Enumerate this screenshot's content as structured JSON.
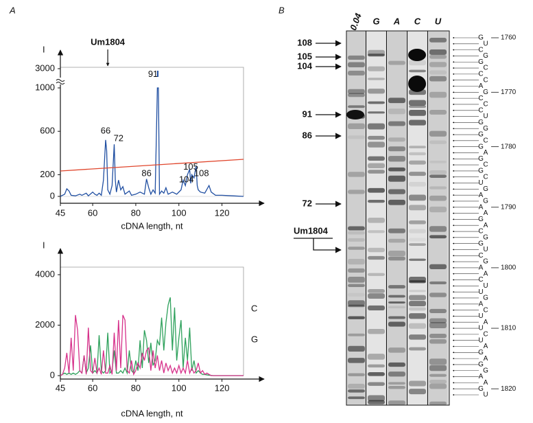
{
  "panels": {
    "a": "A",
    "b": "B"
  },
  "chart_data": [
    {
      "type": "line",
      "y_label": "I",
      "x_label": "cDNA length, nt",
      "x": [
        45,
        47,
        48,
        49,
        50,
        52,
        54,
        55,
        57,
        58,
        60,
        61,
        62,
        63,
        64,
        65,
        66,
        66.5,
        67,
        68,
        69,
        70,
        70.5,
        71,
        72,
        73,
        74,
        75,
        77,
        78,
        80,
        82,
        84,
        85,
        86,
        87,
        88,
        89,
        90,
        90.5,
        91,
        92,
        93,
        94,
        95,
        97,
        99,
        101,
        102,
        103,
        104,
        105,
        105.5,
        106,
        107,
        108,
        108.5,
        109,
        110,
        112,
        114,
        115,
        117,
        120,
        125,
        130
      ],
      "xlim": [
        45,
        130
      ],
      "xticks": [
        45,
        60,
        80,
        100,
        120
      ],
      "ylim": [
        0,
        3000
      ],
      "yticks": [
        0,
        200,
        600,
        1000,
        3000
      ],
      "axis_break": [
        1000,
        3000
      ],
      "series": [
        {
          "color": "#1f4ea1",
          "values": [
            0,
            20,
            70,
            50,
            10,
            5,
            20,
            10,
            30,
            5,
            40,
            20,
            10,
            30,
            10,
            150,
            520,
            420,
            60,
            20,
            100,
            480,
            150,
            40,
            150,
            60,
            90,
            20,
            50,
            10,
            20,
            40,
            20,
            160,
            80,
            20,
            60,
            30,
            1000,
            1000,
            20,
            50,
            30,
            80,
            20,
            40,
            20,
            60,
            150,
            100,
            200,
            250,
            120,
            200,
            170,
            280,
            100,
            60,
            40,
            30,
            100,
            40,
            10,
            10,
            5,
            0
          ]
        },
        {
          "color": "#e0452b",
          "x": [
            45,
            130
          ],
          "values": [
            234,
            342
          ]
        }
      ],
      "annotations": [
        {
          "text": "Um1804",
          "x": 67
        },
        {
          "text": "66",
          "x": 66,
          "y": 600
        },
        {
          "text": "72",
          "x": 72,
          "y": 530
        },
        {
          "text": "86",
          "x": 85,
          "y": 210
        },
        {
          "text": "91",
          "x": 88,
          "y": 2400
        },
        {
          "text": "104",
          "x": 103.5,
          "y": 150
        },
        {
          "text": "105",
          "x": 105.5,
          "y": 270
        },
        {
          "text": "108",
          "x": 110.5,
          "y": 210
        }
      ]
    },
    {
      "type": "line",
      "y_label": "I",
      "x_label": "cDNA length, nt",
      "x": [
        45,
        46,
        47,
        48,
        49,
        50,
        51,
        52,
        53,
        54,
        55,
        56,
        57,
        58,
        59,
        60,
        61,
        62,
        63,
        64,
        65,
        66,
        67,
        68,
        69,
        70,
        71,
        72,
        73,
        74,
        75,
        76,
        77,
        78,
        79,
        80,
        81,
        82,
        83,
        84,
        85,
        86,
        87,
        88,
        89,
        90,
        91,
        92,
        93,
        94,
        95,
        96,
        97,
        98,
        99,
        100,
        101,
        102,
        103,
        104,
        105,
        106,
        107,
        108,
        109,
        110,
        111,
        112,
        113,
        114,
        115,
        116,
        117,
        118,
        119,
        120,
        121,
        122,
        123,
        124,
        125,
        126,
        127,
        128,
        129,
        130
      ],
      "xlim": [
        45,
        130
      ],
      "xticks": [
        45,
        60,
        80,
        100,
        120
      ],
      "ylim": [
        0,
        4300
      ],
      "yticks": [
        0,
        2000,
        4000
      ],
      "series": [
        {
          "name": "C",
          "color": "#2ca05a",
          "values": [
            0,
            50,
            100,
            50,
            100,
            50,
            100,
            50,
            100,
            200,
            100,
            800,
            100,
            300,
            1200,
            100,
            200,
            100,
            1600,
            200,
            100,
            200,
            1700,
            100,
            200,
            1000,
            100,
            100,
            200,
            100,
            300,
            100,
            1000,
            200,
            100,
            600,
            200,
            1400,
            300,
            1800,
            1400,
            500,
            1300,
            400,
            600,
            1400,
            1200,
            2300,
            1000,
            2100,
            2800,
            3100,
            1000,
            2700,
            600,
            1500,
            2200,
            300,
            1500,
            600,
            1900,
            200,
            600,
            100,
            200,
            100,
            50,
            50,
            30,
            20,
            10,
            0,
            0,
            0,
            0,
            0,
            0,
            0,
            0,
            0,
            0,
            0,
            0,
            0,
            0,
            0
          ]
        },
        {
          "name": "G",
          "color": "#d6308a",
          "values": [
            0,
            50,
            300,
            900,
            100,
            1500,
            200,
            2400,
            1800,
            200,
            100,
            800,
            50,
            1900,
            200,
            100,
            700,
            100,
            300,
            50,
            1000,
            100,
            100,
            400,
            50,
            1700,
            200,
            2200,
            300,
            2400,
            2200,
            200,
            100,
            600,
            50,
            200,
            500,
            300,
            900,
            600,
            1000,
            1100,
            200,
            1000,
            300,
            800,
            200,
            600,
            100,
            500,
            200,
            400,
            100,
            300,
            100,
            400,
            100,
            300,
            100,
            600,
            100,
            300,
            100,
            200,
            500,
            100,
            200,
            50,
            100,
            50,
            0,
            0,
            0,
            0,
            0,
            0,
            0,
            0,
            0,
            0,
            0,
            0,
            0,
            0,
            0,
            0
          ]
        }
      ]
    }
  ],
  "gel": {
    "lanes": [
      "0.04",
      "G",
      "A",
      "C",
      "U"
    ],
    "markers": [
      "108",
      "105",
      "104",
      "91",
      "86",
      "72"
    ],
    "site": "Um1804",
    "sequence": [
      {
        "base": "G",
        "position": 1760
      },
      {
        "base": "U"
      },
      {
        "base": "C"
      },
      {
        "base": "G"
      },
      {
        "base": "G"
      },
      {
        "base": "C"
      },
      {
        "base": "C"
      },
      {
        "base": "C"
      },
      {
        "base": "A"
      },
      {
        "base": "G",
        "position": 1770
      },
      {
        "base": "C"
      },
      {
        "base": "C"
      },
      {
        "base": "C"
      },
      {
        "base": "U"
      },
      {
        "base": "G"
      },
      {
        "base": "G"
      },
      {
        "base": "G"
      },
      {
        "base": "C"
      },
      {
        "base": "G",
        "position": 1780
      },
      {
        "base": "A"
      },
      {
        "base": "G"
      },
      {
        "base": "C"
      },
      {
        "base": "G"
      },
      {
        "base": "C"
      },
      {
        "base": "U"
      },
      {
        "base": "G"
      },
      {
        "base": "A"
      },
      {
        "base": "G"
      },
      {
        "base": "A",
        "position": 1790
      },
      {
        "base": "A"
      },
      {
        "base": "G"
      },
      {
        "base": "A"
      },
      {
        "base": "C"
      },
      {
        "base": "G"
      },
      {
        "base": "G"
      },
      {
        "base": "U"
      },
      {
        "base": "C"
      },
      {
        "base": "G"
      },
      {
        "base": "A",
        "position": 1800
      },
      {
        "base": "A"
      },
      {
        "base": "C"
      },
      {
        "base": "U"
      },
      {
        "base": "U"
      },
      {
        "base": "G"
      },
      {
        "base": "A"
      },
      {
        "base": "C"
      },
      {
        "base": "U"
      },
      {
        "base": "A"
      },
      {
        "base": "U",
        "position": 1810
      },
      {
        "base": "C"
      },
      {
        "base": "U"
      },
      {
        "base": "A"
      },
      {
        "base": "G"
      },
      {
        "base": "A"
      },
      {
        "base": "G"
      },
      {
        "base": "G"
      },
      {
        "base": "A"
      },
      {
        "base": "A"
      },
      {
        "base": "G",
        "position": 1820
      },
      {
        "base": "U"
      }
    ]
  }
}
